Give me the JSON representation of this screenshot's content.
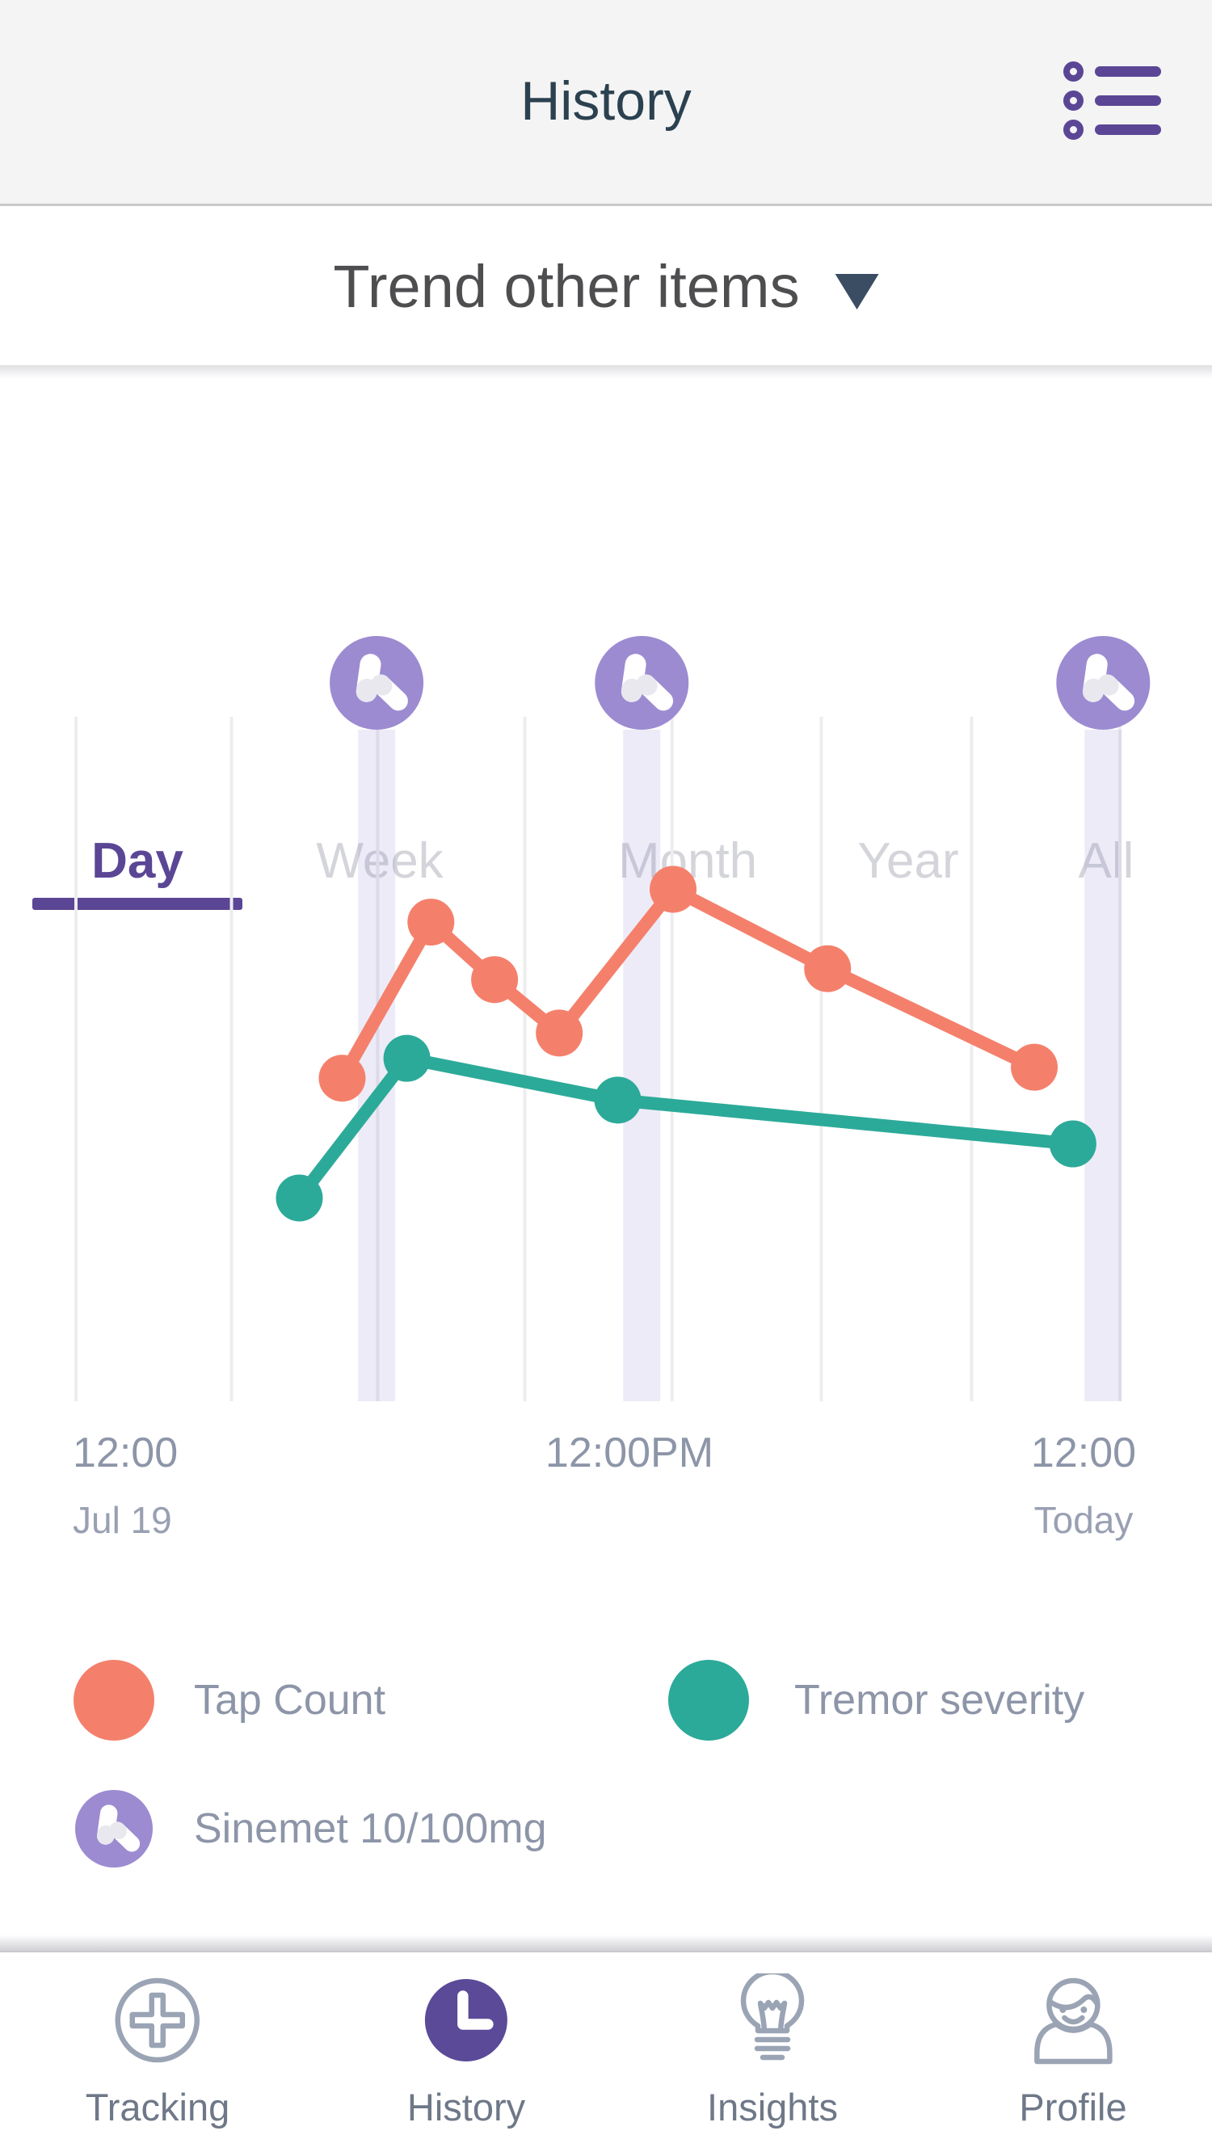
{
  "colors": {
    "accent": "#5b4695",
    "nav_active_bg": "#5a4a98",
    "nav_icon_stroke": "#9aa4b4",
    "nav_label": "#6e7888",
    "title_color": "#2b4150",
    "trend_text": "#4e4e51",
    "trend_caret": "#3b4d63",
    "tab_inactive": "#d4d5da",
    "axis_label": "#8d95a8",
    "axis_sublabel": "#99a0b2",
    "legend_text": "#8d95a8",
    "orange": "#f4806c",
    "teal": "#2caa99",
    "pill": "#9c8bd1",
    "pill_light": "#e9e8ef",
    "band": "rgba(131,112,196,0.14)",
    "gridline": "#ededef",
    "header_bg": "#f4f4f5",
    "header_border": "#c9c9cb"
  },
  "header": {
    "title": "History"
  },
  "trend_selector": {
    "label": "Trend other items"
  },
  "tabs": [
    {
      "label": "Day",
      "active": true
    },
    {
      "label": "Week",
      "active": false
    },
    {
      "label": "Month",
      "active": false
    },
    {
      "label": "Year",
      "active": false
    },
    {
      "label": "All",
      "active": false
    }
  ],
  "chart_data": {
    "type": "line",
    "title": "",
    "xlabel": "",
    "ylabel": "",
    "grid": true,
    "y_scale_note": "no y-axis shown; values are relative 0-100",
    "gridline_positions": [
      0,
      0.149,
      0.289,
      0.43,
      0.571,
      0.714,
      0.858,
      1
    ],
    "x_axis_labels": [
      {
        "time": "12:00",
        "date": "Jul 19"
      },
      {
        "time": "12:00PM",
        "date": ""
      },
      {
        "time": "12:00",
        "date": "Today"
      }
    ],
    "series": [
      {
        "name": "Tap Count",
        "color": "#f4806c",
        "points": [
          [
            0.255,
            47.2
          ],
          [
            0.34,
            70.0
          ],
          [
            0.401,
            61.6
          ],
          [
            0.463,
            53.8
          ],
          [
            0.572,
            74.8
          ],
          [
            0.72,
            63.2
          ],
          [
            0.918,
            48.8
          ]
        ]
      },
      {
        "name": "Tremor severity",
        "color": "#2caa99",
        "points": [
          [
            0.214,
            29.7
          ],
          [
            0.317,
            50.1
          ],
          [
            0.519,
            44.0
          ],
          [
            0.955,
            37.6
          ]
        ]
      }
    ],
    "medication_events": {
      "name": "Sinemet 10/100mg",
      "icon": "pill-icon",
      "color": "#9c8bd1",
      "band_color": "rgba(131,112,196,0.14)",
      "positions": [
        0.288,
        0.542,
        0.984
      ]
    }
  },
  "legend": [
    {
      "label": "Tap Count",
      "swatch": "circle",
      "color": "#f4806c"
    },
    {
      "label": "Tremor severity",
      "swatch": "circle",
      "color": "#2caa99"
    },
    {
      "label": "Sinemet 10/100mg",
      "swatch": "pill-icon",
      "color": "#9c8bd1"
    }
  ],
  "nav": [
    {
      "label": "Tracking",
      "icon": "plus-circle-icon",
      "active": false
    },
    {
      "label": "History",
      "icon": "clock-icon",
      "active": true
    },
    {
      "label": "Insights",
      "icon": "lightbulb-icon",
      "active": false
    },
    {
      "label": "Profile",
      "icon": "person-icon",
      "active": false
    }
  ]
}
